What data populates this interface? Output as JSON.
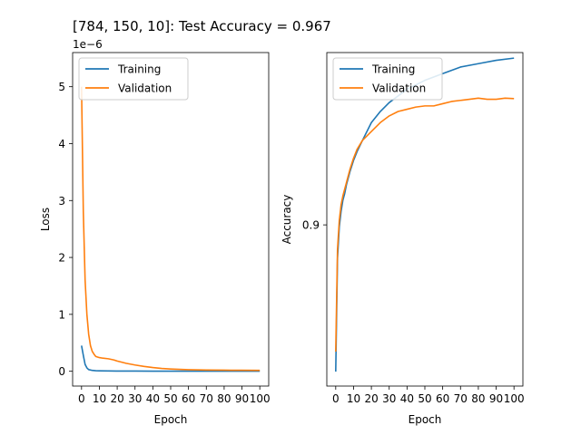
{
  "figure": {
    "title": "[784, 150, 10]: Test Accuracy = 0.967"
  },
  "chart_data": [
    {
      "type": "line",
      "xlabel": "Epoch",
      "ylabel": "Loss",
      "offset_label": "1e−6",
      "xlim": [
        -5,
        105
      ],
      "ylim": [
        -2.6e-07,
        5.6e-06
      ],
      "x_ticks": [
        0,
        10,
        20,
        30,
        40,
        50,
        60,
        70,
        80,
        90,
        100
      ],
      "x_tick_labels": [
        "0",
        "10",
        "20",
        "30",
        "40",
        "50",
        "60",
        "70",
        "80",
        "90",
        "100"
      ],
      "y_ticks": [
        0,
        1e-06,
        2e-06,
        3e-06,
        4e-06,
        5e-06
      ],
      "y_tick_labels": [
        "0",
        "1",
        "2",
        "3",
        "4",
        "5"
      ],
      "legend_position": "top-left",
      "series": [
        {
          "name": "Training",
          "color": "#1f77b4",
          "x": [
            0,
            1,
            2,
            3,
            4,
            6,
            8,
            10,
            15,
            20,
            30,
            40,
            50,
            60,
            70,
            80,
            90,
            100
          ],
          "y": [
            4.5e-07,
            2.8e-07,
            1.2e-07,
            6e-08,
            3e-08,
            1.5e-08,
            1e-08,
            8e-09,
            5e-09,
            4e-09,
            3e-09,
            2.5e-09,
            2e-09,
            1.8e-09,
            1.6e-09,
            1.5e-09,
            1.4e-09,
            1.3e-09
          ]
        },
        {
          "name": "Validation",
          "color": "#ff7f0e",
          "x": [
            0,
            1,
            2,
            3,
            4,
            5,
            6,
            7,
            8,
            10,
            12,
            15,
            18,
            20,
            25,
            30,
            35,
            40,
            45,
            50,
            55,
            60,
            70,
            80,
            90,
            100
          ],
          "y": [
            5e-06,
            2.8e-06,
            1.6e-06,
            1e-06,
            6.5e-07,
            4.5e-07,
            3.5e-07,
            3e-07,
            2.6e-07,
            2.4e-07,
            2.3e-07,
            2.2e-07,
            2e-07,
            1.8e-07,
            1.4e-07,
            1.1e-07,
            8.5e-08,
            6.5e-08,
            5e-08,
            4e-08,
            3.3e-08,
            2.8e-08,
            2.2e-08,
            1.9e-08,
            1.7e-08,
            1.6e-08
          ]
        }
      ]
    },
    {
      "type": "line",
      "xlabel": "Epoch",
      "ylabel": "Accuracy",
      "xlim": [
        -5,
        105
      ],
      "ylim": [
        0.8275,
        0.9775
      ],
      "x_ticks": [
        0,
        10,
        20,
        30,
        40,
        50,
        60,
        70,
        80,
        90,
        100
      ],
      "x_tick_labels": [
        "0",
        "10",
        "20",
        "30",
        "40",
        "50",
        "60",
        "70",
        "80",
        "90",
        "100"
      ],
      "y_ticks": [
        0.9
      ],
      "y_tick_labels": [
        "0.9"
      ],
      "legend_position": "top-left",
      "series": [
        {
          "name": "Training",
          "color": "#1f77b4",
          "x": [
            0,
            1,
            2,
            3,
            4,
            5,
            6,
            8,
            10,
            12,
            15,
            20,
            25,
            30,
            40,
            50,
            60,
            70,
            80,
            90,
            100
          ],
          "y": [
            0.834,
            0.885,
            0.899,
            0.906,
            0.911,
            0.914,
            0.918,
            0.924,
            0.929,
            0.933,
            0.938,
            0.946,
            0.951,
            0.955,
            0.961,
            0.965,
            0.968,
            0.971,
            0.9725,
            0.974,
            0.975
          ]
        },
        {
          "name": "Validation",
          "color": "#ff7f0e",
          "x": [
            0,
            1,
            2,
            3,
            4,
            5,
            6,
            8,
            10,
            12,
            15,
            20,
            25,
            30,
            35,
            40,
            45,
            50,
            55,
            60,
            65,
            70,
            75,
            80,
            85,
            90,
            95,
            100
          ],
          "y": [
            0.843,
            0.889,
            0.902,
            0.909,
            0.913,
            0.916,
            0.919,
            0.925,
            0.93,
            0.934,
            0.938,
            0.942,
            0.946,
            0.949,
            0.951,
            0.952,
            0.953,
            0.9535,
            0.9535,
            0.9545,
            0.9555,
            0.956,
            0.9565,
            0.957,
            0.9565,
            0.9565,
            0.957,
            0.9568
          ]
        }
      ]
    }
  ]
}
